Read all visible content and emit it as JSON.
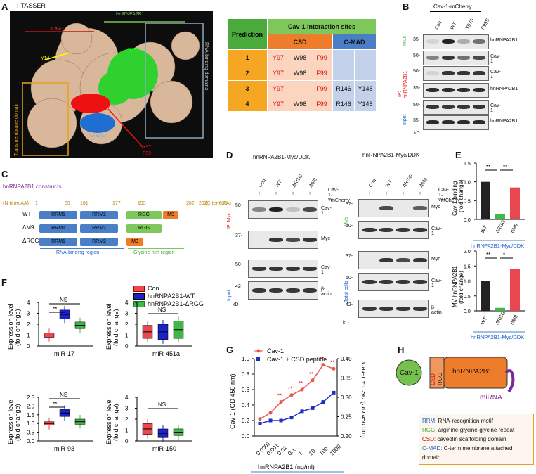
{
  "panelA": {
    "label": "A",
    "title": "I-TASSER",
    "cav1": "Cav-1",
    "hnrnp": "HnRNPA2B1",
    "rgg": "RGG",
    "y14": "Y14",
    "csd": "CSD",
    "cmad": "C-MAD",
    "y97": "Y97",
    "f99": "F99",
    "tm": "Transmembrane domain",
    "rbd": "RNA-binding domains",
    "table": {
      "head_pred": "Prediction",
      "head_sites": "Cav-1 interaction sites",
      "head_csd": "CSD",
      "head_cmad": "C-MAD",
      "rows": [
        {
          "n": "1",
          "c": [
            "Y97",
            "W98",
            "F99",
            "",
            ""
          ]
        },
        {
          "n": "2",
          "c": [
            "Y97",
            "W98",
            "F99",
            "",
            ""
          ]
        },
        {
          "n": "3",
          "c": [
            "Y97",
            "",
            "F99",
            "R146",
            "Y148"
          ]
        },
        {
          "n": "4",
          "c": [
            "Y97",
            "W98",
            "F99",
            "R146",
            "Y148"
          ]
        }
      ]
    }
  },
  "panelB": {
    "label": "B",
    "title": "Cav-1-mCherry",
    "lanes": [
      "Con",
      "WT",
      "Y97S",
      "F99S"
    ],
    "rows": [
      "hnRNPA2B1",
      "Cav-1",
      "Cav-1",
      "hnRNPA2B1",
      "Cav-1",
      "hnRNPA2B1"
    ],
    "markers": [
      "35-",
      "50-",
      "50-",
      "35-",
      "50-",
      "35-"
    ],
    "mvs": "MVs",
    "ip": "IP:",
    "ip2": "hnRNPA2B1",
    "input": "Input",
    "kd": "kD"
  },
  "panelC": {
    "label": "C",
    "title": "hnRNPA2B1 constructs",
    "nterm": "(N-term AA)",
    "cterm": "(C-term AA)",
    "nums": [
      "1",
      "89",
      "101",
      "177",
      "193",
      "282",
      "292",
      "326"
    ],
    "rows": [
      {
        "name": "WT",
        "d": [
          "RRM1",
          "RRM2",
          "RGG",
          "M9"
        ]
      },
      {
        "name": "ΔM9",
        "d": [
          "RRM1",
          "RRM2",
          "RGG",
          ""
        ]
      },
      {
        "name": "ΔRGG",
        "d": [
          "RRM1",
          "RRM2",
          "M9",
          ""
        ]
      }
    ],
    "rna_region": "RNA-binding region",
    "gly_region": "Glycine-rich region"
  },
  "panelD": {
    "label": "D",
    "title_left": "hnRNPA2B1-Myc/DDK",
    "title_right": "hnRNPA2B1-Myc/DDK",
    "lanes": [
      "Con",
      "WT",
      "ΔRGG",
      "ΔM9"
    ],
    "plus": [
      "+",
      "+",
      "+",
      "+"
    ],
    "cav_row": "Cav-1 WT",
    "cav_row2": "-mCherry",
    "left_rows": [
      "Cav-1",
      "Myc",
      "Cav-1",
      "β-actin"
    ],
    "left_markers": [
      "50-",
      "37-",
      "50-",
      "42-"
    ],
    "right_rows": [
      "Myc",
      "Cav-1",
      "Myc",
      "Cav-1",
      "β-actin"
    ],
    "right_markers": [
      "37-",
      "50-",
      "37-",
      "50-",
      "42-"
    ],
    "ip": "IP: Myc",
    "input": "Input",
    "mvs": "MVs",
    "total": "Total cells",
    "kd": "kD"
  },
  "panelE": {
    "label": "E",
    "top": {
      "ylabel": "Cav-1 binding",
      "ylabel2": "(fold change)",
      "ticks": [
        "0.0",
        "0.5",
        "1.0",
        "1.5"
      ],
      "sig": [
        "**",
        "**"
      ]
    },
    "bottom": {
      "ylabel": "MV-hnRNPA2B1",
      "ylabel2": "(fold change)",
      "ticks": [
        "0.0",
        "0.5",
        "1.0",
        "1.5",
        "2.0"
      ],
      "sig": [
        "**",
        "*"
      ]
    },
    "cats": [
      "WT",
      "ΔRGG",
      "ΔM9"
    ],
    "footer": "hnRNPA2B1-Myc/DDK"
  },
  "panelF": {
    "label": "F",
    "legend": [
      "Con",
      "hnRNPA2B1-WT",
      "hnRNPA2B1-ΔRGG"
    ],
    "ylabel": "Expression level",
    "ylabel2": "(fold change)",
    "plots": [
      {
        "title": "miR-17",
        "ticks": [
          "0",
          "1",
          "2",
          "3",
          "4"
        ],
        "sig": [
          "**",
          "NS"
        ]
      },
      {
        "title": "miR-451a",
        "ticks": [
          "0",
          "1",
          "2",
          "3",
          "4"
        ],
        "sig": [
          "NS"
        ]
      },
      {
        "title": "miR-93",
        "ticks": [
          "0.0",
          "0.5",
          "1.0",
          "1.5",
          "2.0",
          "2.5"
        ],
        "sig": [
          "**",
          "NS"
        ]
      },
      {
        "title": "miR-150",
        "ticks": [
          "0",
          "1",
          "2",
          "3",
          "4"
        ],
        "sig": [
          "NS"
        ]
      }
    ]
  },
  "panelG": {
    "label": "G",
    "legend": [
      "Cav-1",
      "Cav-1 + CSD peptide"
    ],
    "ylabel": "Cav-1 (OD 450 nm)",
    "ylabel_r": "Cav-1 + CSD (OD 450 nm)",
    "xlabel": "hnRNPA2B1 (ng/ml)",
    "left_ticks": [
      "0.0",
      "0.2",
      "0.4",
      "0.6",
      "0.8",
      "1.0"
    ],
    "right_ticks": [
      "0.20",
      "0.25",
      "0.30",
      "0.35",
      "0.40"
    ],
    "x_ticks": [
      "0.0001",
      "0.001",
      "0.01",
      "0.1",
      "1",
      "10",
      "100",
      "1000"
    ],
    "stars": "**"
  },
  "panelH": {
    "label": "H",
    "cav1": "Cav-1",
    "csd": "CSD",
    "rgg": "RGG",
    "hnrnp": "hnRNPA2B1",
    "mirna": "miRNA",
    "legend": [
      {
        "k": "RRM:",
        "v": " RNA-recognition motif"
      },
      {
        "k": "RGG:",
        "v": " arginine-glycine-glycine repeat"
      },
      {
        "k": "CSD:",
        "v": " caveolin scaffolding domain"
      },
      {
        "k": "C-MAD:",
        "v": " C-term membrane attached domain"
      }
    ]
  },
  "chart_data": [
    {
      "type": "bar",
      "title": "",
      "ylabel": "Cav-1 binding (fold change)",
      "categories": [
        "WT",
        "ΔRGG",
        "ΔM9"
      ],
      "values": [
        1.0,
        0.15,
        0.85
      ],
      "ylim": [
        0,
        1.5
      ]
    },
    {
      "type": "bar",
      "title": "",
      "ylabel": "MV-hnRNPA2B1 (fold change)",
      "categories": [
        "WT",
        "ΔRGG",
        "ΔM9"
      ],
      "values": [
        1.0,
        0.1,
        1.4
      ],
      "ylim": [
        0,
        2.0
      ]
    },
    {
      "type": "line",
      "title": "",
      "xlabel": "hnRNPA2B1 (ng/ml)",
      "x": [
        "0.0001",
        "0.001",
        "0.01",
        "0.1",
        "1",
        "10",
        "100",
        "1000"
      ],
      "series": [
        {
          "name": "Cav-1",
          "values": [
            0.22,
            0.3,
            0.44,
            0.53,
            0.6,
            0.72,
            0.92,
            0.87
          ],
          "color": "#e8574f"
        },
        {
          "name": "Cav-1 + CSD peptide",
          "values": [
            0.19,
            0.2,
            0.2,
            0.21,
            0.23,
            0.24,
            0.26,
            0.29
          ],
          "color": "#1f2fbf"
        }
      ],
      "ylim": [
        0,
        1.0
      ],
      "ylim_right": [
        0.2,
        0.4
      ]
    },
    {
      "type": "box",
      "title": "miR-17",
      "ylabel": "Expression level (fold change)",
      "series": [
        {
          "name": "Con",
          "median": 1.0
        },
        {
          "name": "hnRNPA2B1-WT",
          "median": 2.9
        },
        {
          "name": "hnRNPA2B1-ΔRGG",
          "median": 1.9
        }
      ],
      "ylim": [
        0,
        4
      ]
    },
    {
      "type": "box",
      "title": "miR-451a",
      "ylabel": "Expression level (fold change)",
      "series": [
        {
          "name": "Con",
          "median": 1.3
        },
        {
          "name": "hnRNPA2B1-WT",
          "median": 1.3
        },
        {
          "name": "hnRNPA2B1-ΔRGG",
          "median": 1.5
        }
      ],
      "ylim": [
        0,
        4
      ]
    },
    {
      "type": "box",
      "title": "miR-93",
      "ylabel": "Expression level (fold change)",
      "series": [
        {
          "name": "Con",
          "median": 1.0
        },
        {
          "name": "hnRNPA2B1-WT",
          "median": 1.6
        },
        {
          "name": "hnRNPA2B1-ΔRGG",
          "median": 1.1
        }
      ],
      "ylim": [
        0,
        2.5
      ]
    },
    {
      "type": "box",
      "title": "miR-150",
      "ylabel": "Expression level (fold change)",
      "series": [
        {
          "name": "Con",
          "median": 1.1
        },
        {
          "name": "hnRNPA2B1-WT",
          "median": 0.7
        },
        {
          "name": "hnRNPA2B1-ΔRGG",
          "median": 0.8
        }
      ],
      "ylim": [
        0,
        4
      ]
    }
  ],
  "colors": {
    "con": "#e8474f",
    "wt": "#1a22c8",
    "drgg": "#3fb845",
    "m9": "#ee7d2b",
    "rrm": "#4a7fc8",
    "rggbox": "#7ec75b"
  }
}
